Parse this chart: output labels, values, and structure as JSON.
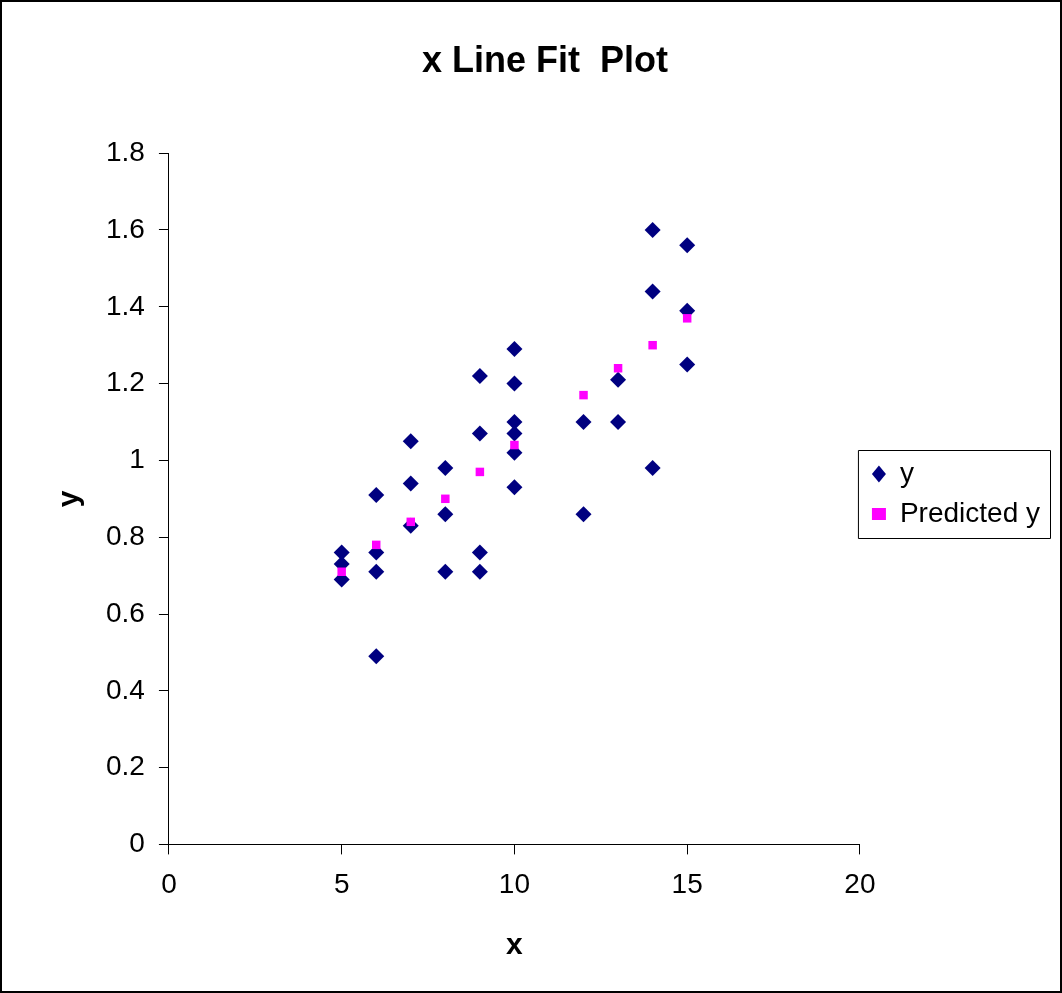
{
  "chart_data": {
    "type": "scatter",
    "title": "x Line Fit  Plot",
    "xlabel": "x",
    "ylabel": "y",
    "xlim": [
      0,
      20
    ],
    "xticks": [
      0,
      5,
      10,
      15,
      20
    ],
    "ylim": [
      0,
      1.8
    ],
    "yticks": [
      0,
      0.2,
      0.4,
      0.6,
      0.8,
      1,
      1.2,
      1.4,
      1.6,
      1.8
    ],
    "grid": false,
    "legend": "right",
    "series": [
      {
        "name": "y",
        "color": "#000080",
        "marker": "diamond",
        "x": [
          5,
          5,
          5,
          6,
          6,
          6,
          6,
          7,
          7,
          7,
          8,
          8,
          8,
          9,
          9,
          9,
          9,
          10,
          10,
          10,
          10,
          10,
          10,
          12,
          12,
          13,
          13,
          14,
          14,
          14,
          15,
          15,
          15
        ],
        "values": [
          0.76,
          0.73,
          0.69,
          0.91,
          0.76,
          0.71,
          0.49,
          1.05,
          0.94,
          0.83,
          0.98,
          0.86,
          0.71,
          1.22,
          1.07,
          0.76,
          0.71,
          1.29,
          1.2,
          1.1,
          1.07,
          1.02,
          0.93,
          1.1,
          0.86,
          1.21,
          1.1,
          1.6,
          1.44,
          0.98,
          1.56,
          1.39,
          1.25
        ]
      },
      {
        "name": "Predicted y",
        "color": "#ff00ff",
        "marker": "square",
        "x": [
          5,
          6,
          7,
          8,
          9,
          10,
          12,
          13,
          14,
          15
        ],
        "values": [
          0.71,
          0.78,
          0.84,
          0.9,
          0.97,
          1.04,
          1.17,
          1.24,
          1.3,
          1.37
        ]
      }
    ]
  }
}
